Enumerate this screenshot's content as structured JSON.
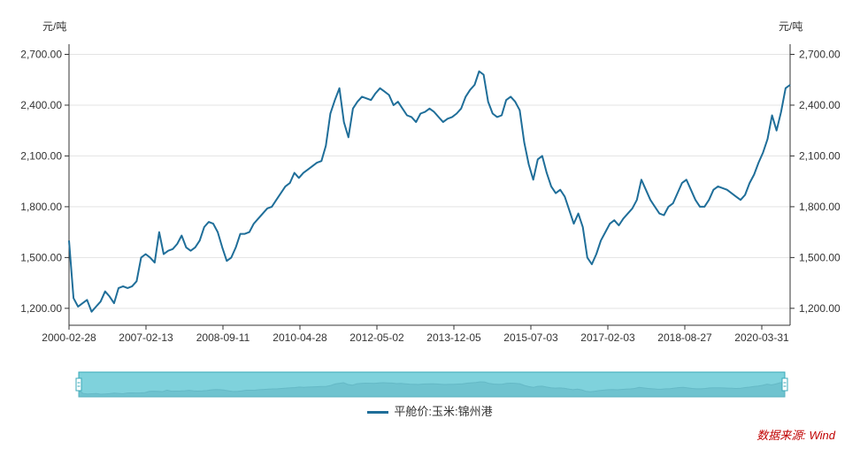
{
  "chart_data": {
    "type": "line",
    "unit_left": "元/吨",
    "unit_right": "元/吨",
    "ylim": [
      1100,
      2760
    ],
    "yticks": [
      "1,200.00",
      "1,500.00",
      "1,800.00",
      "2,100.00",
      "2,400.00",
      "2,700.00"
    ],
    "ytick_values": [
      1200,
      1500,
      1800,
      2100,
      2400,
      2700
    ],
    "xticks": [
      "2000-02-28",
      "2007-02-13",
      "2008-09-11",
      "2010-04-28",
      "2012-05-02",
      "2013-12-05",
      "2015-07-03",
      "2017-02-03",
      "2018-08-27",
      "2020-03-31"
    ],
    "series": [
      {
        "name": "平舱价:玉米:锦州港",
        "color": "#1f6e99",
        "values": [
          1600,
          1260,
          1210,
          1230,
          1250,
          1180,
          1210,
          1240,
          1300,
          1270,
          1230,
          1320,
          1330,
          1320,
          1330,
          1360,
          1500,
          1520,
          1500,
          1470,
          1650,
          1520,
          1540,
          1550,
          1580,
          1630,
          1560,
          1540,
          1560,
          1600,
          1680,
          1710,
          1700,
          1650,
          1560,
          1480,
          1500,
          1560,
          1640,
          1640,
          1650,
          1700,
          1730,
          1760,
          1790,
          1800,
          1840,
          1880,
          1920,
          1940,
          2000,
          1970,
          2000,
          2020,
          2040,
          2060,
          2070,
          2160,
          2350,
          2430,
          2500,
          2300,
          2210,
          2380,
          2420,
          2450,
          2440,
          2430,
          2470,
          2500,
          2480,
          2460,
          2400,
          2420,
          2380,
          2340,
          2330,
          2300,
          2350,
          2360,
          2380,
          2360,
          2330,
          2300,
          2320,
          2330,
          2350,
          2380,
          2450,
          2490,
          2520,
          2600,
          2580,
          2420,
          2350,
          2330,
          2340,
          2430,
          2450,
          2420,
          2370,
          2180,
          2050,
          1960,
          2080,
          2100,
          2000,
          1920,
          1880,
          1900,
          1860,
          1780,
          1700,
          1760,
          1680,
          1500,
          1460,
          1520,
          1600,
          1650,
          1700,
          1720,
          1690,
          1730,
          1760,
          1790,
          1840,
          1960,
          1900,
          1840,
          1800,
          1760,
          1750,
          1800,
          1820,
          1880,
          1940,
          1960,
          1900,
          1840,
          1800,
          1800,
          1840,
          1900,
          1920,
          1910,
          1900,
          1880,
          1860,
          1840,
          1870,
          1940,
          1990,
          2060,
          2120,
          2200,
          2340,
          2250,
          2360,
          2500,
          2520
        ]
      }
    ],
    "source": "数据来源: Wind"
  }
}
